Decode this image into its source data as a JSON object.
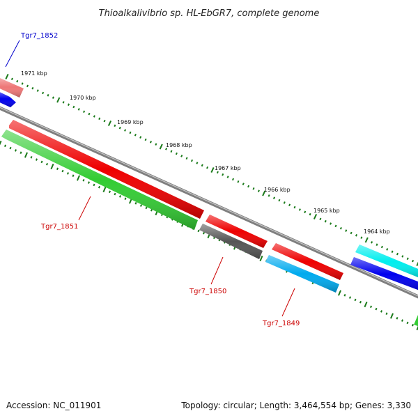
{
  "title": "Thioalkalivibrio sp. HL-EbGR7, complete genome",
  "footer": {
    "accession": "Accession: NC_011901",
    "topology": "Topology: circular; Length: 3,464,554 bp; Genes: 3,330"
  },
  "scale_labels": [
    "1971 kbp",
    "1970 kbp",
    "1969 kbp",
    "1968 kbp",
    "1967 kbp",
    "1966 kbp",
    "1965 kbp",
    "1964 kbp"
  ],
  "gene_labels": [
    {
      "text": "Tgr7_1852",
      "color": "#0000cc"
    },
    {
      "text": "Tgr7_1851",
      "color": "#cc0000"
    },
    {
      "text": "Tgr7_1850",
      "color": "#cc0000"
    },
    {
      "text": "Tgr7_1849",
      "color": "#cc0000"
    }
  ],
  "colors": {
    "backbone": "#7f7f7f",
    "tick": "#1a7a1a",
    "cds_red": "#ee0000",
    "cds_green": "#33cc33",
    "cds_grey": "#555555",
    "cds_cyan": "#00eeee",
    "cds_skyblue": "#00aaee",
    "cds_blue": "#0000ee",
    "cds_pink": "#ee7777"
  }
}
